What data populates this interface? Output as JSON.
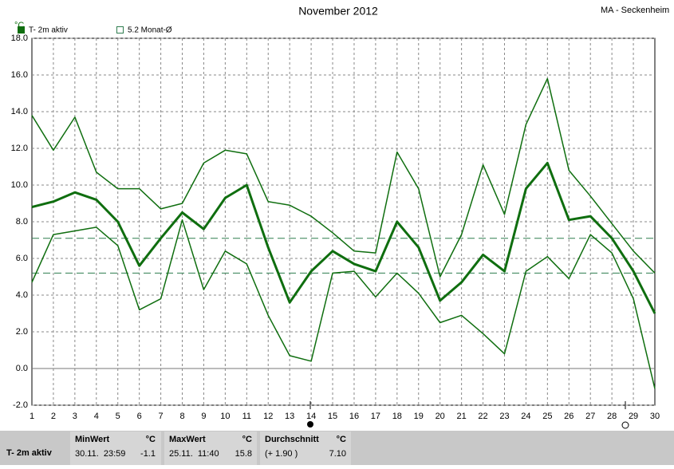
{
  "chart_data": {
    "type": "line",
    "title": "November 2012",
    "subtitle": "MA - Seckenheim",
    "y_label": "°C",
    "x": [
      1,
      2,
      3,
      4,
      5,
      6,
      7,
      8,
      9,
      10,
      11,
      12,
      13,
      14,
      15,
      16,
      17,
      18,
      19,
      20,
      21,
      22,
      23,
      24,
      25,
      26,
      27,
      28,
      29,
      30
    ],
    "xlim": [
      1,
      30
    ],
    "ylim": [
      -2,
      18
    ],
    "yticks": [
      {
        "value": -2,
        "label": "-2.0"
      },
      {
        "value": 0,
        "label": "0.0"
      },
      {
        "value": 2,
        "label": "2.0"
      },
      {
        "value": 4,
        "label": "4.0"
      },
      {
        "value": 6,
        "label": "6.0"
      },
      {
        "value": 8,
        "label": "8.0"
      },
      {
        "value": 10,
        "label": "10.0"
      },
      {
        "value": 12,
        "label": "12.0"
      },
      {
        "value": 14,
        "label": "14.0"
      },
      {
        "value": 16,
        "label": "16.0"
      },
      {
        "value": 18,
        "label": "18.0"
      }
    ],
    "grid": true,
    "series": [
      {
        "color": "#0f6e0f",
        "width": 1.5,
        "values": [
          13.8,
          11.9,
          13.7,
          10.7,
          9.8,
          9.8,
          8.7,
          9.0,
          11.2,
          11.9,
          11.7,
          9.1,
          8.9,
          8.3,
          7.4,
          6.4,
          6.3,
          11.8,
          9.8,
          5.0,
          7.3,
          11.1,
          8.4,
          13.3,
          15.8,
          10.8,
          9.4,
          7.9,
          6.4,
          5.2
        ]
      },
      {
        "name": "T- 2m aktiv",
        "color": "#0f6e0f",
        "width": 3,
        "values": [
          8.8,
          9.1,
          9.6,
          9.2,
          8.0,
          5.6,
          7.1,
          8.5,
          7.6,
          9.3,
          10.0,
          6.6,
          3.6,
          5.3,
          6.4,
          5.7,
          5.3,
          8.0,
          6.6,
          3.7,
          4.7,
          6.2,
          5.3,
          9.8,
          11.2,
          8.1,
          8.3,
          7.1,
          5.3,
          3.0
        ]
      },
      {
        "color": "#0f6e0f",
        "width": 1.5,
        "values": [
          4.7,
          7.3,
          7.5,
          7.7,
          6.7,
          3.2,
          3.8,
          8.1,
          4.3,
          6.4,
          5.7,
          2.9,
          0.7,
          0.4,
          5.2,
          5.3,
          3.9,
          5.2,
          4.1,
          2.5,
          2.9,
          1.9,
          0.8,
          5.3,
          6.1,
          4.9,
          7.3,
          6.3,
          3.8,
          -1.1
        ]
      }
    ],
    "ref_lines": [
      {
        "value": 7.1,
        "color": "#2e7d4f"
      },
      {
        "label": "5.2 Monat-Ø",
        "value": 5.2,
        "color": "#2e7d4f"
      }
    ]
  },
  "table": {
    "row_label": "T- 2m aktiv",
    "cells": [
      {
        "title": "MinWert",
        "unit": "°C",
        "when": "30.11.  23:59",
        "value": "-1.1"
      },
      {
        "title": "MaxWert",
        "unit": "°C",
        "when": "25.11.  11:40",
        "value": "15.8"
      },
      {
        "title": "Durchschnitt",
        "unit": "°C",
        "when": "(+ 1.90 )",
        "value": "7.10"
      }
    ]
  }
}
